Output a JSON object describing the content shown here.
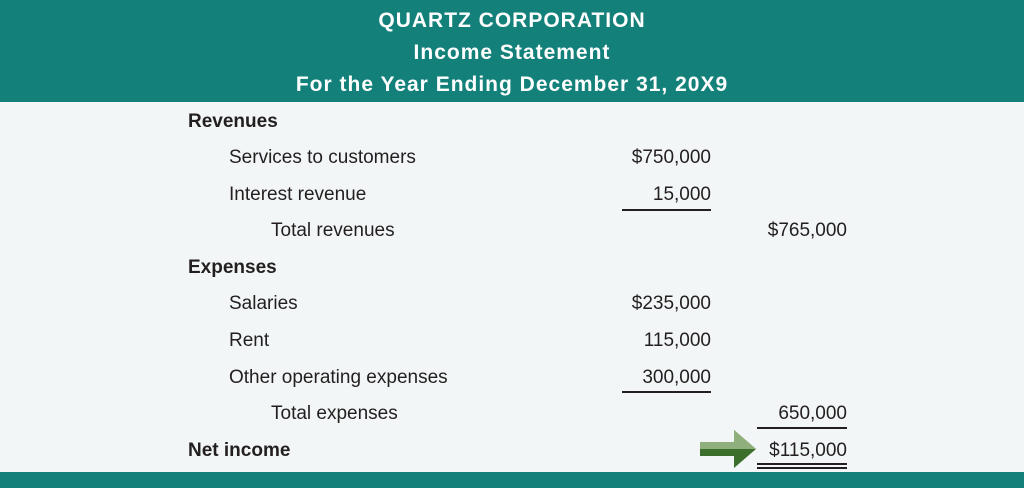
{
  "header": {
    "company": "QUARTZ CORPORATION",
    "statement": "Income Statement",
    "period": "For the Year Ending December 31, 20X9"
  },
  "revenues": {
    "heading": "Revenues",
    "items": [
      {
        "label": "Services to customers",
        "amount": "$750,000"
      },
      {
        "label": "Interest revenue",
        "amount": "15,000"
      }
    ],
    "total_label": "Total revenues",
    "total_amount": "$765,000"
  },
  "expenses": {
    "heading": "Expenses",
    "items": [
      {
        "label": "Salaries",
        "amount": "$235,000"
      },
      {
        "label": "Rent",
        "amount": "115,000"
      },
      {
        "label": "Other operating expenses",
        "amount": "300,000"
      }
    ],
    "total_label": "Total expenses",
    "total_amount": "650,000"
  },
  "net_income": {
    "label": "Net income",
    "amount": "$115,000"
  },
  "colors": {
    "header_bg": "#13807a",
    "arrow_light": "#8fb07c",
    "arrow_dark": "#3c6e2c"
  },
  "icons": {
    "highlight": "arrow-right-icon"
  }
}
